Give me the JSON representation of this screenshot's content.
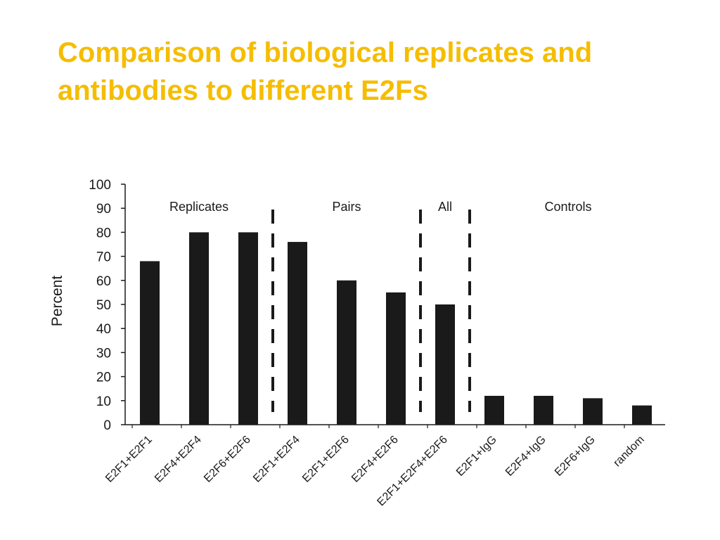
{
  "slide": {
    "title": "Comparison of biological replicates and\nantibodies to different E2Fs",
    "title_color": "#f5bd00"
  },
  "chart_data": {
    "type": "bar",
    "ylabel": "Percent",
    "ylim": [
      0,
      100
    ],
    "yticks": [
      0,
      10,
      20,
      30,
      40,
      50,
      60,
      70,
      80,
      90,
      100
    ],
    "categories": [
      "E2F1+E2F1",
      "E2F4+E2F4",
      "E2F6+E2F6",
      "E2F1+E2F4",
      "E2F1+E2F6",
      "E2F4+E2F6",
      "E2F1+E2F4+E2F6",
      "E2F1+IgG",
      "E2F4+IgG",
      "E2F6+IgG",
      "random"
    ],
    "values": [
      68,
      80,
      80,
      76,
      60,
      55,
      50,
      12,
      12,
      11,
      8
    ],
    "bar_color": "#1a1a1a",
    "groups": [
      {
        "label": "Replicates",
        "from": 0,
        "to": 2
      },
      {
        "label": "Pairs",
        "from": 3,
        "to": 5
      },
      {
        "label": "All",
        "from": 6,
        "to": 6
      },
      {
        "label": "Controls",
        "from": 7,
        "to": 10
      }
    ],
    "group_dividers_after": [
      2,
      5,
      6
    ],
    "grid": false,
    "legend": "none"
  }
}
